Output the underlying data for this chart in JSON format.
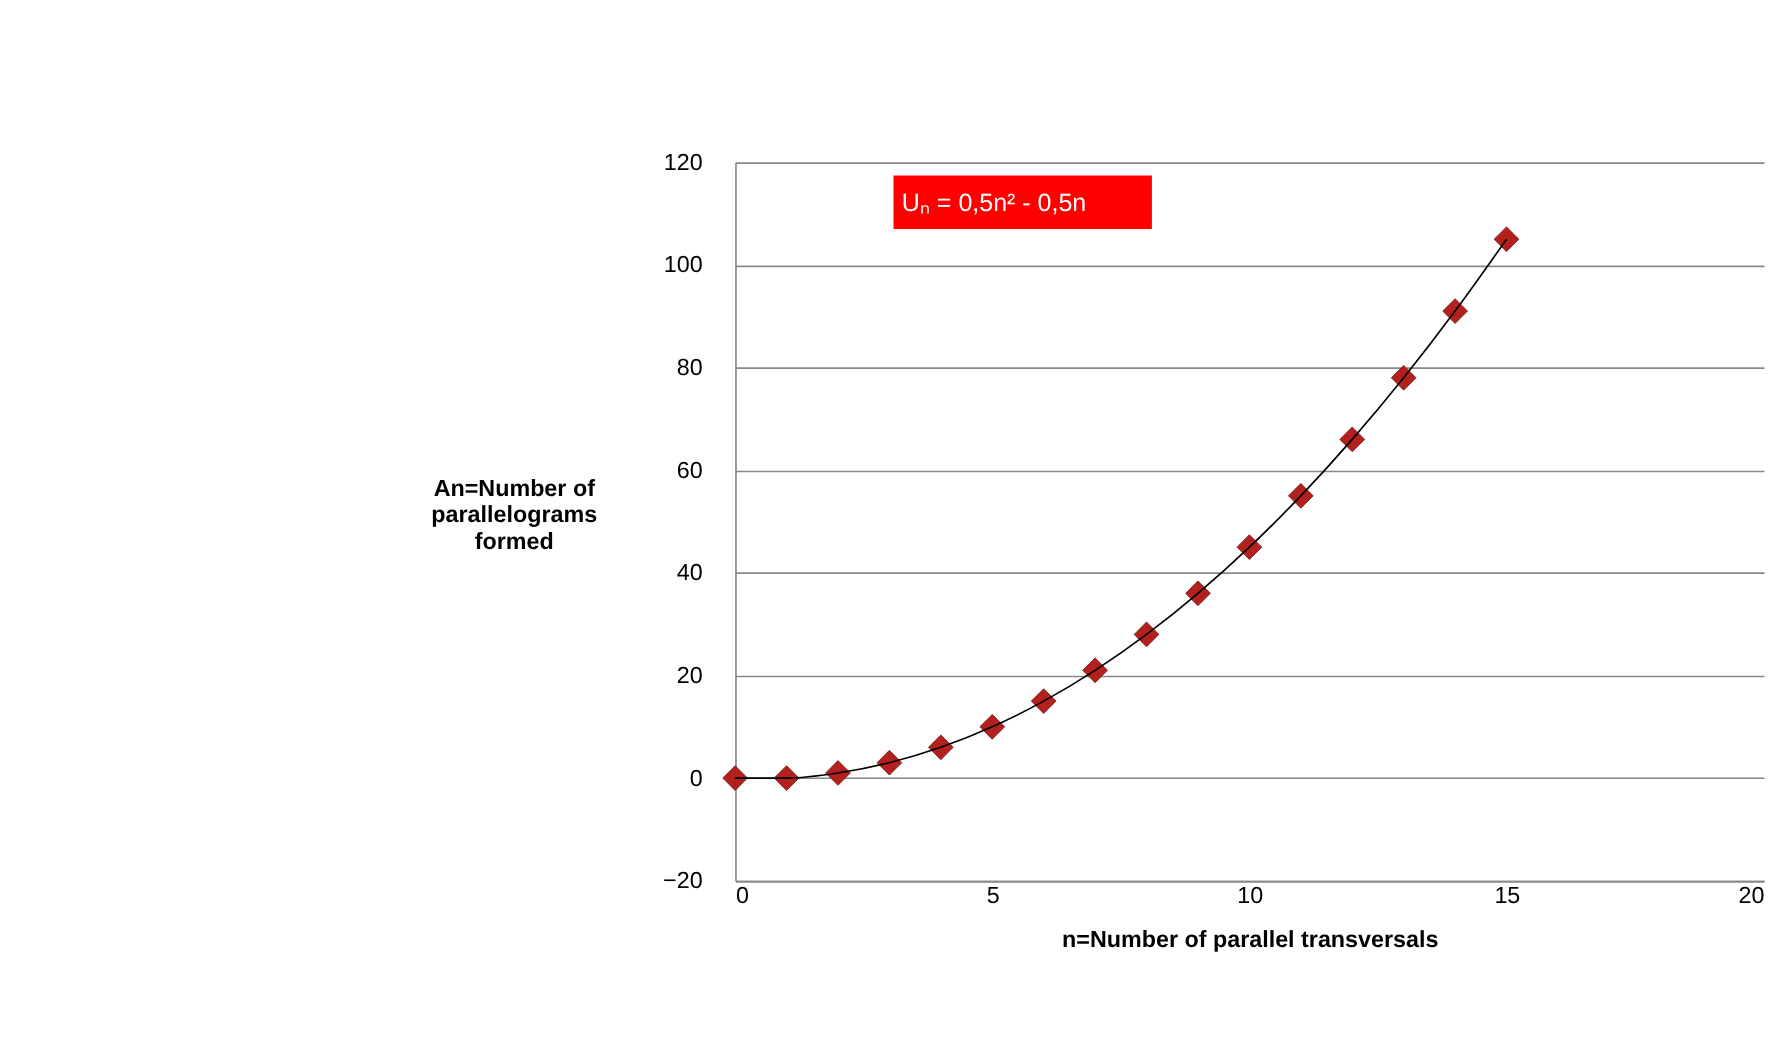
{
  "chart_data": {
    "type": "scatter",
    "xlabel": "n=Number of parallel transversals",
    "ylabel": "An=Number of parallelograms formed",
    "annotations": [
      "Uₙ = 0,5n² - 0,5n"
    ],
    "xlim": [
      0,
      20
    ],
    "xticks": [
      0,
      5,
      10,
      15,
      20
    ],
    "ylim": [
      -20,
      120
    ],
    "yticks": [
      -20,
      0,
      20,
      40,
      60,
      80,
      100,
      120
    ],
    "grid": "y",
    "series": [
      {
        "color": "#b3211e",
        "marker": "diamond",
        "x": [
          0,
          1,
          2,
          3,
          4,
          5,
          6,
          7,
          8,
          9,
          10,
          11,
          12,
          13,
          14,
          15
        ],
        "values": [
          0,
          0,
          1,
          3,
          6,
          10,
          15,
          21,
          28,
          36,
          45,
          55,
          66,
          78,
          91,
          105
        ]
      },
      {
        "type": "line",
        "color": "#000000",
        "marker": "none",
        "line_style": "solid",
        "x": [
          0,
          1,
          2,
          3,
          4,
          5,
          6,
          7,
          8,
          9,
          10,
          11,
          12,
          13,
          14,
          15
        ],
        "values": [
          0,
          0,
          1,
          3,
          6,
          10,
          15,
          21,
          28,
          36,
          45,
          55,
          66,
          78,
          91,
          105
        ]
      }
    ]
  }
}
